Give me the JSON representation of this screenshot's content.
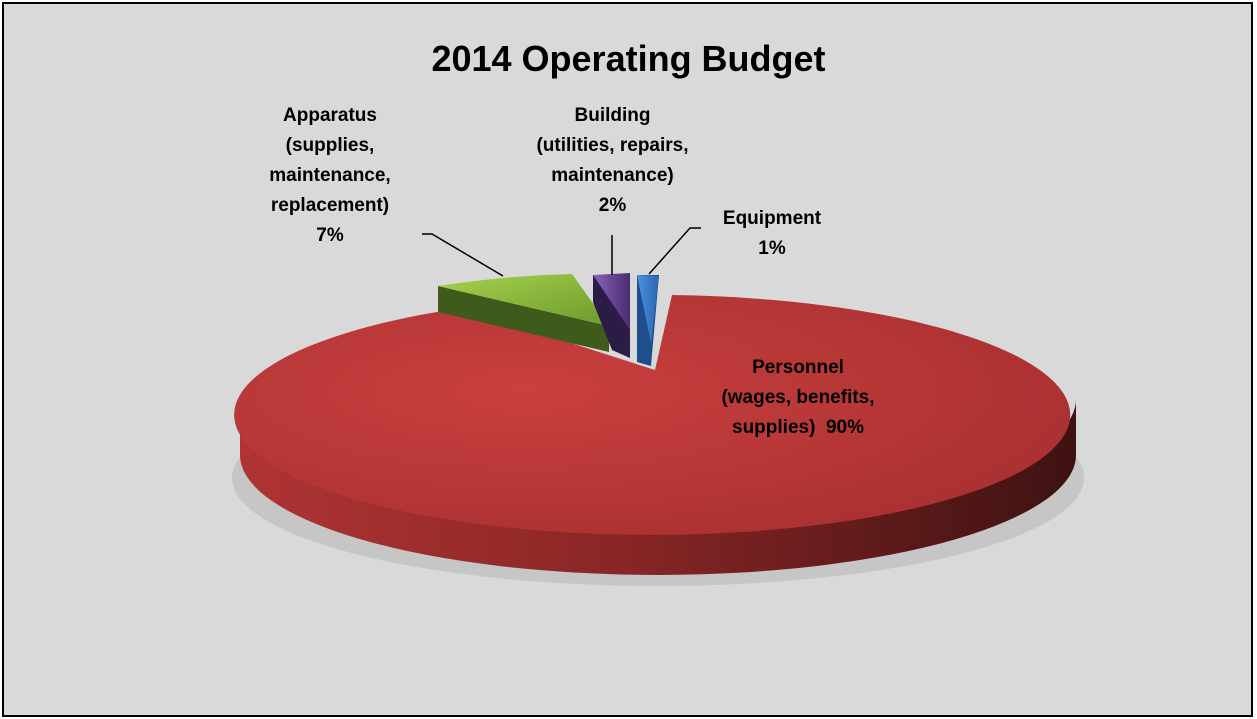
{
  "chart_data": {
    "type": "pie",
    "title": "2014 Operating Budget",
    "slices": [
      {
        "label": "Personnel\n(wages, benefits,\nsupplies)  90%",
        "value": 90,
        "color": "#c0393b"
      },
      {
        "label": "Apparatus\n(supplies,\nmaintenance,\nreplacement)\n7%",
        "value": 7,
        "color": "#8cbd3d"
      },
      {
        "label": "Building\n(utilities, repairs,\nmaintenance)\n2%",
        "value": 2,
        "color": "#7a52a6"
      },
      {
        "label": "Equipment\n1%",
        "value": 1,
        "color": "#3a7fd0"
      }
    ],
    "style": "3d-exploded",
    "legend": "none"
  }
}
